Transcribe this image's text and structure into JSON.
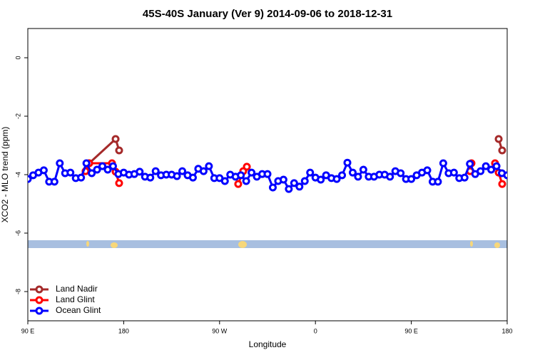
{
  "chart_data": {
    "type": "line",
    "title": "45S-40S January (Ver 9)   2014-09-06 to 2018-12-31",
    "xlabel": "Longitude",
    "ylabel": "XCO2 - MLO trend (ppm)",
    "xlim": [
      90,
      540
    ],
    "ylim": [
      -9,
      1
    ],
    "xticks": [
      {
        "value": 90,
        "label": "90 E"
      },
      180,
      {
        "value": 270,
        "label": "90 W"
      },
      {
        "value": 360,
        "label": "0"
      },
      {
        "value": 450,
        "label": "90 E"
      },
      {
        "value": 540,
        "label": "180"
      }
    ],
    "yticks": [
      -8,
      -6,
      -4,
      -2,
      0
    ],
    "legend": "bottomleft",
    "series": [
      {
        "name": "Land Nadir",
        "color": "#a52a2a",
        "x": [
          147.6,
          172.4,
          175.7,
          null,
          532,
          535.3
        ],
        "values": [
          -3.61,
          -2.78,
          -3.17,
          null,
          -2.78,
          -3.17
        ]
      },
      {
        "name": "Land Glint",
        "color": "#ff0000",
        "x": [
          144.2,
          147.6,
          169,
          172.4,
          175.7,
          null,
          287.5,
          292.2,
          295.6,
          null,
          505.2,
          506.5,
          null,
          528.6,
          532,
          535.3
        ],
        "values": [
          -3.88,
          -3.61,
          -3.61,
          -3.9,
          -4.29,
          null,
          -4.32,
          -3.88,
          -3.73,
          null,
          -3.88,
          -3.61,
          null,
          -3.61,
          -3.93,
          -4.32
        ]
      },
      {
        "name": "Ocean Glint",
        "color": "#0000ff",
        "x": [
          90,
          95,
          100,
          105,
          110,
          115,
          120,
          125,
          130,
          135,
          140,
          145,
          150,
          155,
          160,
          165,
          170,
          175,
          180,
          185,
          190,
          195,
          200,
          205,
          210,
          215,
          220,
          225,
          230,
          235,
          240,
          245,
          250,
          255,
          260,
          265,
          270,
          275,
          280,
          285,
          290,
          295,
          300,
          305,
          310,
          315,
          320,
          325,
          330,
          335,
          340,
          345,
          350,
          355,
          360,
          365,
          370,
          375,
          380,
          385,
          390,
          395,
          400,
          405,
          410,
          415,
          420,
          425,
          430,
          435,
          440,
          445,
          450,
          455,
          460,
          465,
          470,
          475,
          480,
          485,
          490,
          495,
          500,
          505,
          510,
          515,
          520,
          525,
          530,
          535,
          540
        ],
        "values": [
          -4.15,
          -4.02,
          -3.93,
          -3.85,
          -4.24,
          -4.24,
          -3.61,
          -3.95,
          -3.93,
          -4.12,
          -4.1,
          -3.61,
          -3.95,
          -3.83,
          -3.71,
          -3.83,
          -3.71,
          -3.98,
          -3.93,
          -4,
          -3.98,
          -3.9,
          -4.07,
          -4.1,
          -3.88,
          -4.02,
          -4,
          -4,
          -4.05,
          -3.88,
          -4.02,
          -4.1,
          -3.8,
          -3.88,
          -3.71,
          -4.12,
          -4.12,
          -4.22,
          -4,
          -4.07,
          -4.02,
          -4.22,
          -3.93,
          -4.07,
          -3.98,
          -3.98,
          -4.44,
          -4.22,
          -4.17,
          -4.49,
          -4.29,
          -4.41,
          -4.22,
          -3.93,
          -4.1,
          -4.17,
          -4.02,
          -4.12,
          -4.15,
          -4.02,
          -3.59,
          -3.93,
          -4.07,
          -3.83,
          -4.07,
          -4.07,
          -4,
          -4,
          -4.07,
          -3.88,
          -3.95,
          -4.15,
          -4.15,
          -4.02,
          -3.93,
          -3.85,
          -4.24,
          -4.24,
          -3.61,
          -3.95,
          -3.93,
          -4.12,
          -4.1,
          -3.63,
          -3.98,
          -3.88,
          -3.71,
          -3.83,
          -3.71,
          -3.95,
          -4.02
        ]
      }
    ]
  }
}
